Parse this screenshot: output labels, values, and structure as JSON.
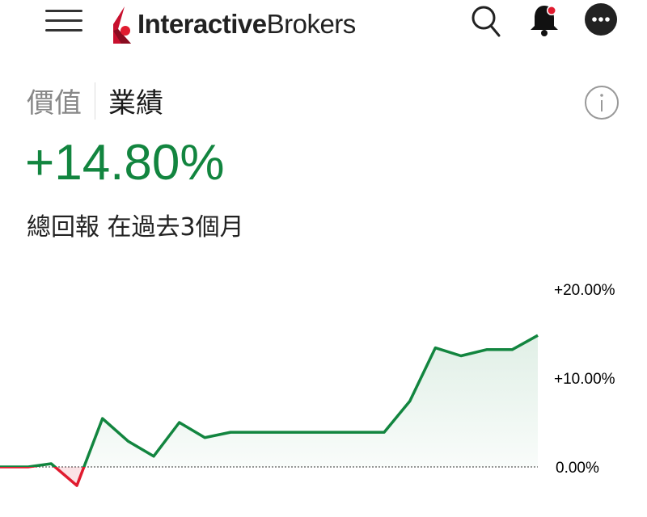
{
  "header": {
    "brand_bold": "Interactive",
    "brand_regular": "Brokers",
    "icons": [
      "menu-icon",
      "search-icon",
      "bell-icon",
      "more-icon"
    ],
    "notification_dot_color": "#e01b2f"
  },
  "tabs": [
    {
      "label": "價值",
      "active": false
    },
    {
      "label": "業績",
      "active": true
    }
  ],
  "performance": {
    "value": "+14.80%",
    "caption": "總回報 在過去3個月",
    "color": "#12853f"
  },
  "chart_data": {
    "type": "line",
    "title": "",
    "xlabel": "",
    "ylabel": "",
    "ylim": [
      -5,
      20
    ],
    "yticks": [
      "+20.00%",
      "+10.00%",
      "0.00%"
    ],
    "ytick_values": [
      20,
      10,
      0
    ],
    "baseline": 0,
    "grid": false,
    "positive_color": "#12853f",
    "negative_color": "#e01b2f",
    "values": [
      0,
      0,
      0.36,
      -2.1,
      5.45,
      2.9,
      1.2,
      5.0,
      3.3,
      3.9,
      3.9,
      3.9,
      3.9,
      3.9,
      3.9,
      3.9,
      7.4,
      13.4,
      12.5,
      13.2,
      13.2,
      14.8
    ],
    "x": [
      0,
      1.1,
      2,
      3,
      4,
      5,
      6,
      7,
      8,
      9,
      10,
      11,
      12,
      13,
      14,
      15,
      16,
      17,
      18,
      19,
      20,
      21
    ]
  }
}
